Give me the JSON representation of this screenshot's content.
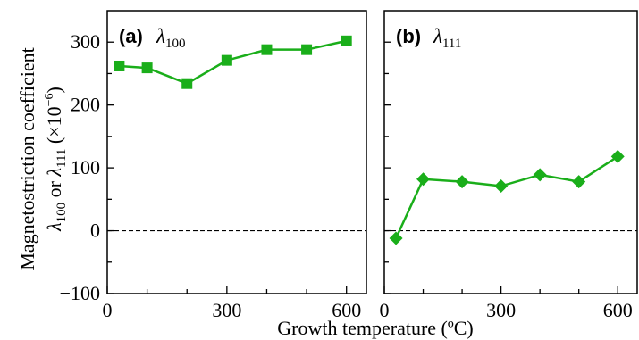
{
  "chart_data": [
    {
      "type": "line",
      "panel_tag": "(a)",
      "panel_symbol": "λ",
      "panel_subscript": "100",
      "marker": "square",
      "color": "#1aae1a",
      "x": [
        30,
        100,
        200,
        300,
        400,
        500,
        600
      ],
      "y": [
        262,
        259,
        234,
        271,
        288,
        288,
        302
      ],
      "xlim": [
        0,
        650
      ],
      "ylim": [
        -100,
        350
      ],
      "zero_line": "dashed"
    },
    {
      "type": "line",
      "panel_tag": "(b)",
      "panel_symbol": "λ",
      "panel_subscript": "111",
      "marker": "diamond",
      "color": "#1aae1a",
      "x": [
        30,
        100,
        200,
        300,
        400,
        500,
        600
      ],
      "y": [
        -12,
        82,
        78,
        71,
        89,
        78,
        118
      ],
      "xlim": [
        0,
        650
      ],
      "ylim": [
        -100,
        350
      ],
      "zero_line": "dashed"
    }
  ],
  "axes": {
    "x_ticks": [
      "0",
      "300",
      "600"
    ],
    "y_ticks": [
      "−100",
      "0",
      "100",
      "200",
      "300"
    ],
    "xlabel": "Growth temperature (ºC)",
    "ylabel_line1": "Magnetostriction coefficient",
    "ylabel_line2_a": "λ",
    "ylabel_line2_a_sub": "100",
    "ylabel_line2_mid": " or ",
    "ylabel_line2_b": "λ",
    "ylabel_line2_b_sub": "111",
    "ylabel_line2_unit": " (×10",
    "ylabel_line2_exp": "−6",
    "ylabel_line2_close": ")"
  }
}
